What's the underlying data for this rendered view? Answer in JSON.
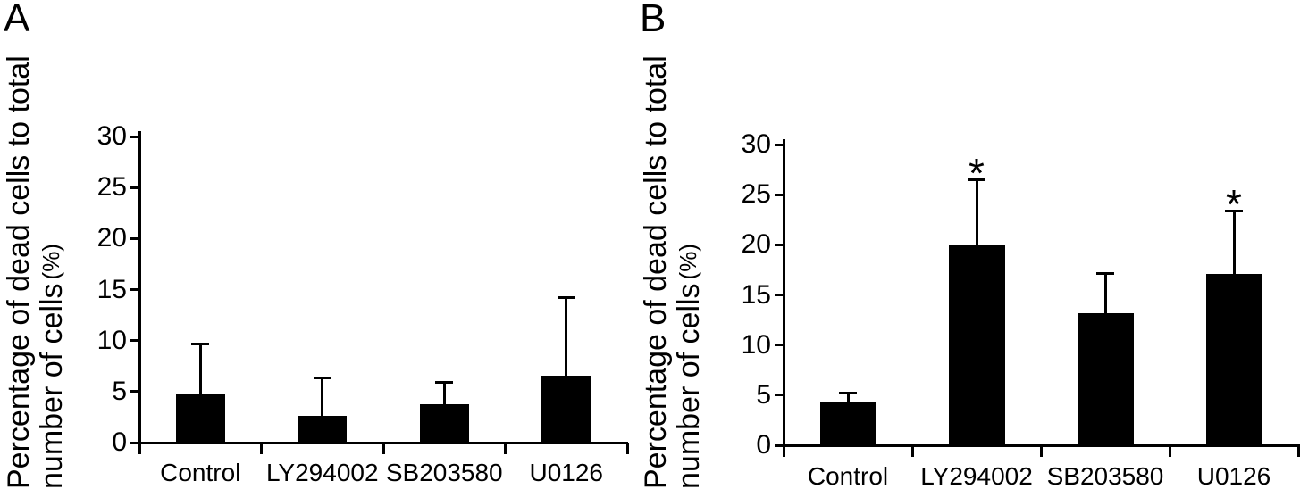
{
  "figure": {
    "background": "#ffffff",
    "bar_color": "#000000",
    "axis_color": "#000000",
    "panels": [
      {
        "label": "A",
        "y_axis_title_line1": "Percentage of dead cells to total",
        "y_axis_title_line2": "number of cells",
        "y_axis_title_unit": "(%)"
      },
      {
        "label": "B",
        "y_axis_title_line1": "Percentage of dead cells to total",
        "y_axis_title_line2": "number of cells",
        "y_axis_title_unit": "(%)"
      }
    ]
  },
  "chart_data": [
    {
      "type": "bar",
      "panel": "A",
      "title": "",
      "xlabel": "",
      "ylabel": "Percentage of dead cells to total number of cells (%)",
      "categories": [
        "Control",
        "LY294002",
        "SB203580",
        "U0126"
      ],
      "values": [
        4.7,
        2.6,
        3.8,
        6.6
      ],
      "errors_up": [
        5.0,
        3.7,
        2.1,
        7.6
      ],
      "significance": [
        "",
        "",
        "",
        ""
      ],
      "ylim": [
        0,
        30
      ],
      "yticks": [
        0,
        5,
        10,
        15,
        20,
        25,
        30
      ],
      "bar_color": "#000000",
      "error_bar_style": "upper only, capped",
      "grid": false,
      "legend": false
    },
    {
      "type": "bar",
      "panel": "B",
      "title": "",
      "xlabel": "",
      "ylabel": "Percentage of dead cells to total number of cells (%)",
      "categories": [
        "Control",
        "LY294002",
        "SB203580",
        "U0126"
      ],
      "values": [
        4.4,
        19.9,
        13.2,
        17.1
      ],
      "errors_up": [
        0.8,
        6.6,
        3.9,
        6.3
      ],
      "significance": [
        "",
        "*",
        "",
        "*"
      ],
      "ylim": [
        0,
        30
      ],
      "yticks": [
        0,
        5,
        10,
        15,
        20,
        25,
        30
      ],
      "bar_color": "#000000",
      "error_bar_style": "upper only, capped",
      "grid": false,
      "legend": false
    }
  ]
}
